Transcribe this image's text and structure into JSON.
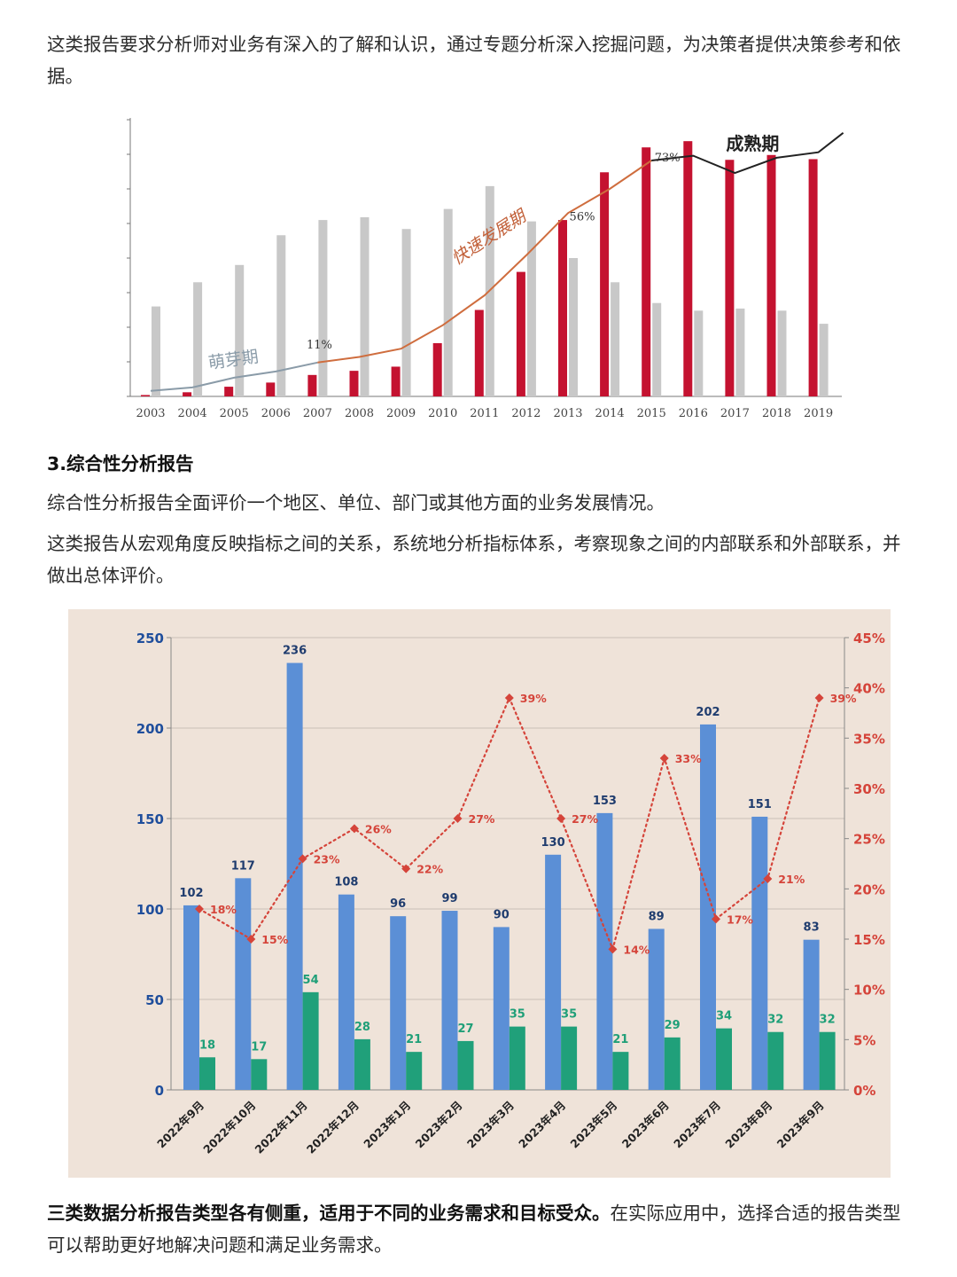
{
  "paragraphs": {
    "p1": "这类报告要求分析师对业务有深入的了解和认识，通过专题分析深入挖掘问题，为决策者提供决策参考和依据。",
    "heading3": "3.综合性分析报告",
    "p2": "综合性分析报告全面评价一个地区、单位、部门或其他方面的业务发展情况。",
    "p3": "这类报告从宏观角度反映指标之间的关系，系统地分析指标体系，考察现象之间的内部联系和外部联系，并做出总体评价。",
    "p4_bold": "三类数据分析报告类型各有侧重，适用于不同的业务需求和目标受众。",
    "p4_rest": "在实际应用中，选择合适的报告类型可以帮助更好地解决问题和满足业务需求。"
  },
  "chart_data": [
    {
      "type": "bar",
      "categories": [
        "2003",
        "2004",
        "2005",
        "2006",
        "2007",
        "2008",
        "2009",
        "2010",
        "2011",
        "2012",
        "2013",
        "2014",
        "2015",
        "2016",
        "2017",
        "2018",
        "2019"
      ],
      "ylim": [
        0,
        8
      ],
      "series": [
        {
          "color": "#c41230",
          "values": [
            0.04,
            0.12,
            0.28,
            0.4,
            0.62,
            0.74,
            0.86,
            1.54,
            2.5,
            3.6,
            5.1,
            6.48,
            7.2,
            7.38,
            6.84,
            6.98,
            6.86
          ]
        },
        {
          "color": "#c8c8c8",
          "values": [
            2.6,
            3.3,
            3.8,
            4.66,
            5.1,
            5.18,
            4.84,
            5.42,
            6.08,
            5.06,
            4.0,
            3.3,
            2.7,
            2.48,
            2.54,
            2.48,
            2.1
          ]
        }
      ],
      "trend_line": {
        "color": "#cf6d3e",
        "values": [
          0.16,
          0.26,
          0.54,
          0.72,
          0.98,
          1.14,
          1.38,
          2.06,
          2.92,
          4.08,
          5.3,
          6.0,
          6.82,
          6.96,
          6.46,
          6.9,
          7.06
        ]
      },
      "percent_labels": [
        "11%",
        "56%",
        "73%"
      ],
      "phase_labels": [
        "萌芽期",
        "快速发展期",
        "成熟期"
      ],
      "colors": {
        "trend_early": "#8a9ba8",
        "trend_mature": "#222222"
      }
    },
    {
      "type": "bar",
      "categories": [
        "2022年9月",
        "2022年10月",
        "2022年11月",
        "2022年12月",
        "2023年1月",
        "2023年2月",
        "2023年3月",
        "2023年4月",
        "2023年5月",
        "2023年6月",
        "2023年7月",
        "2023年8月",
        "2023年9月"
      ],
      "ylim": [
        0,
        250
      ],
      "yticks": [
        "0",
        "50",
        "100",
        "150",
        "200",
        "250"
      ],
      "y2lim": [
        0,
        45
      ],
      "y2ticks": [
        "0%",
        "5%",
        "10%",
        "15%",
        "20%",
        "25%",
        "30%",
        "35%",
        "40%",
        "45%"
      ],
      "series": [
        {
          "color": "#5b8fd6",
          "values": [
            102,
            117,
            236,
            108,
            96,
            99,
            90,
            130,
            153,
            89,
            202,
            151,
            83
          ]
        },
        {
          "color": "#20a07a",
          "values": [
            18,
            17,
            54,
            28,
            21,
            27,
            35,
            35,
            21,
            29,
            34,
            32,
            32
          ]
        }
      ],
      "line_series": {
        "color": "#d5443a",
        "axis": "right",
        "values": [
          18,
          15,
          23,
          26,
          22,
          27,
          39,
          27,
          14,
          33,
          17,
          21,
          39
        ],
        "labels": [
          "18%",
          "15%",
          "23%",
          "26%",
          "22%",
          "27%",
          "39%",
          "27%",
          "14%",
          "33%",
          "17%",
          "21%",
          "39%"
        ]
      },
      "colors": {
        "left_axis_text": "#1f4e9c",
        "right_axis_text": "#d5443a",
        "bar1_label": "#1f3c6e",
        "bar2_label": "#1f9f78"
      }
    }
  ]
}
